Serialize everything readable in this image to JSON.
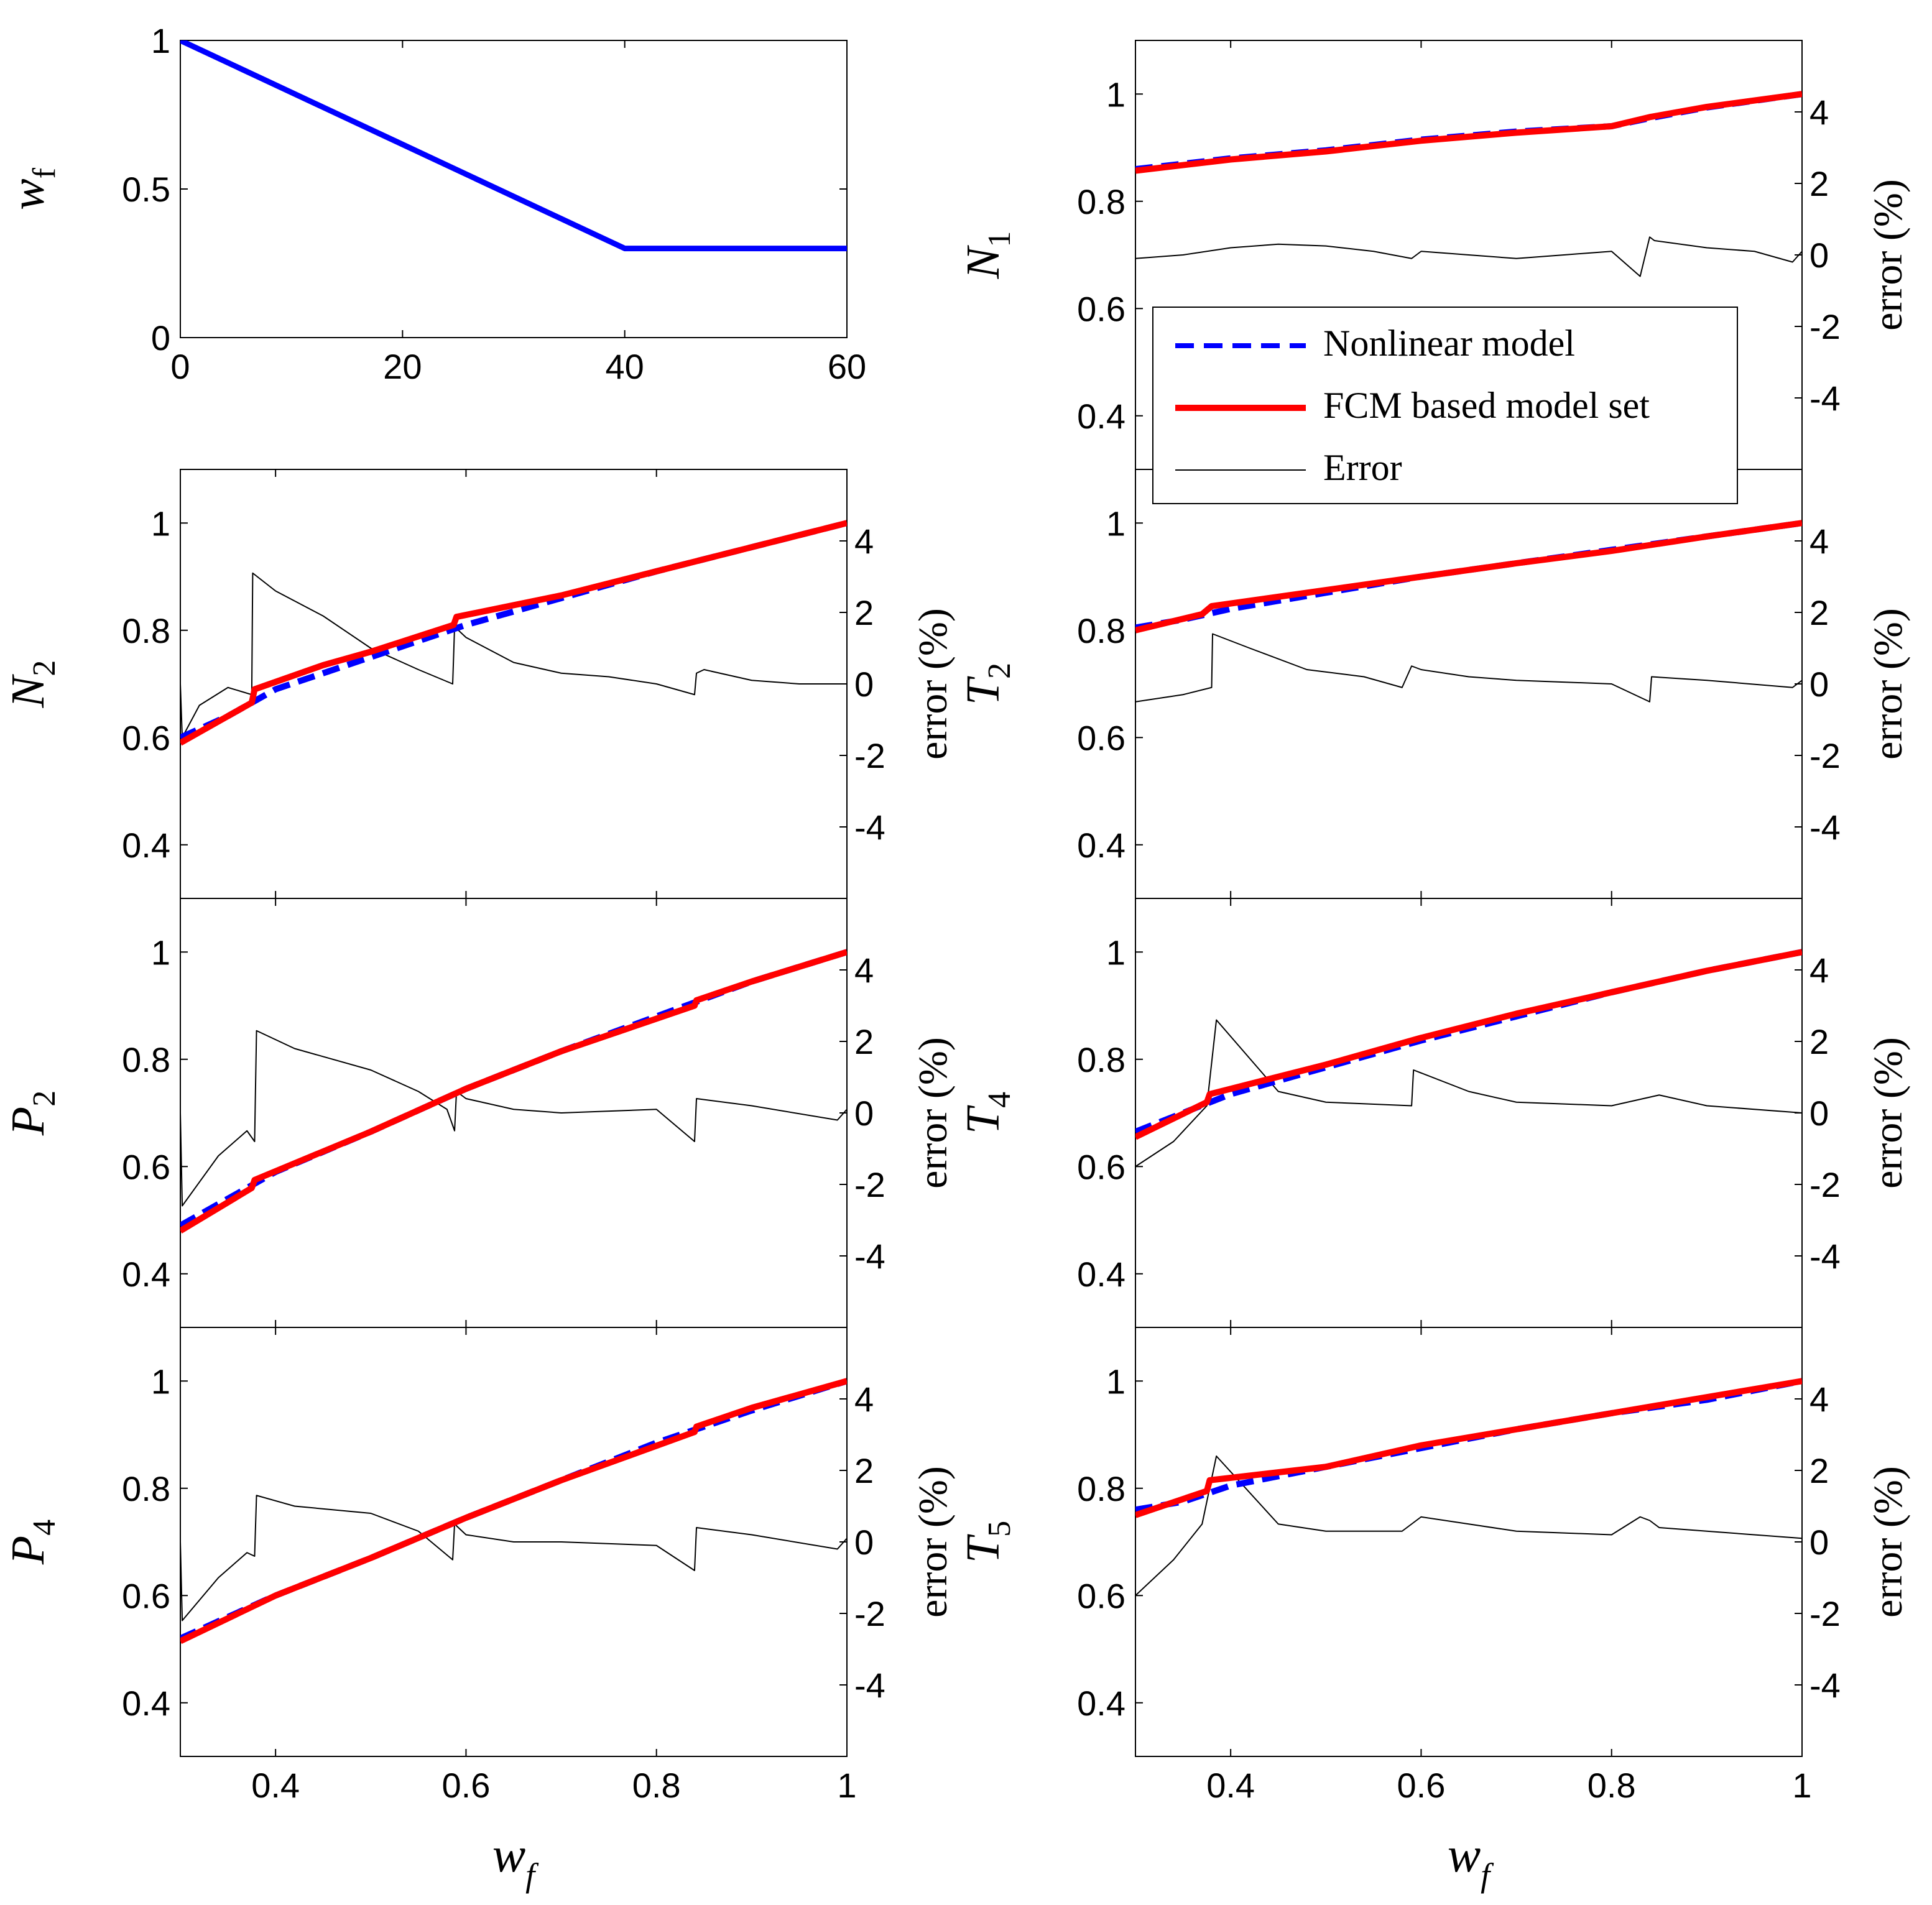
{
  "figure": {
    "legend": {
      "entries": [
        {
          "label": "Nonlinear model",
          "color": "#0000ff",
          "style": "dashed"
        },
        {
          "label": "FCM based model set",
          "color": "#ff0000",
          "style": "solid"
        },
        {
          "label": "Error",
          "color": "#000000",
          "style": "thin"
        }
      ],
      "placement": "inside N1 panel, lower center"
    }
  },
  "chart_data": [
    {
      "id": "wf-input",
      "type": "line",
      "ylabel_main": "w",
      "ylabel_sub": "f",
      "xlim": [
        0,
        60
      ],
      "ylim": [
        0,
        1
      ],
      "xticks": [
        "0",
        "20",
        "40",
        "60"
      ],
      "xtick_values": [
        0,
        20,
        40,
        60
      ],
      "yticks": [
        "0",
        "0.5",
        "1"
      ],
      "ytick_values": [
        0,
        0.5,
        1
      ],
      "series": [
        {
          "color": "#0000ff",
          "x": [
            0,
            40,
            60
          ],
          "y": [
            1,
            0.3,
            0.3
          ]
        }
      ]
    },
    {
      "id": "N1",
      "type": "line",
      "ylabel_main": "N",
      "ylabel_sub": "1",
      "y2label": "error (%)",
      "xlim": [
        0.3,
        1
      ],
      "ylim": [
        0.3,
        1.1
      ],
      "y2lim": [
        -6,
        6
      ],
      "yticks": [
        "0.4",
        "0.6",
        "0.8",
        "1"
      ],
      "ytick_values": [
        0.4,
        0.6,
        0.8,
        1
      ],
      "y2ticks": [
        "-4",
        "-2",
        "0",
        "2",
        "4"
      ],
      "y2tick_values": [
        -4,
        -2,
        0,
        2,
        4
      ],
      "series": [
        {
          "name": "Nonlinear model",
          "color": "#0000ff",
          "x": [
            0.3,
            0.4,
            0.5,
            0.6,
            0.7,
            0.8,
            0.84,
            0.9,
            1.0
          ],
          "y": [
            0.86,
            0.88,
            0.895,
            0.915,
            0.93,
            0.94,
            0.955,
            0.975,
            1.0
          ]
        },
        {
          "name": "FCM based model set",
          "color": "#ff0000",
          "x": [
            0.3,
            0.4,
            0.5,
            0.6,
            0.7,
            0.8,
            0.84,
            0.9,
            1.0
          ],
          "y": [
            0.857,
            0.878,
            0.893,
            0.913,
            0.928,
            0.94,
            0.957,
            0.976,
            1.0
          ]
        },
        {
          "name": "Error",
          "color": "#000000",
          "axis": "right",
          "x": [
            0.3,
            0.35,
            0.4,
            0.45,
            0.5,
            0.55,
            0.59,
            0.6,
            0.65,
            0.7,
            0.75,
            0.8,
            0.83,
            0.84,
            0.845,
            0.9,
            0.95,
            0.99,
            1.0
          ],
          "y": [
            -0.1,
            0.0,
            0.2,
            0.3,
            0.25,
            0.1,
            -0.1,
            0.1,
            0.0,
            -0.1,
            0.0,
            0.1,
            -0.6,
            0.5,
            0.4,
            0.2,
            0.1,
            -0.2,
            0.1
          ]
        }
      ]
    },
    {
      "id": "N2",
      "type": "line",
      "ylabel_main": "N",
      "ylabel_sub": "2",
      "y2label": "error (%)",
      "xlim": [
        0.3,
        1
      ],
      "ylim": [
        0.3,
        1.1
      ],
      "y2lim": [
        -6,
        6
      ],
      "yticks": [
        "0.4",
        "0.6",
        "0.8",
        "1"
      ],
      "ytick_values": [
        0.4,
        0.6,
        0.8,
        1
      ],
      "y2ticks": [
        "-4",
        "-2",
        "0",
        "2",
        "4"
      ],
      "y2tick_values": [
        -4,
        -2,
        0,
        2,
        4
      ],
      "series": [
        {
          "name": "Nonlinear model",
          "color": "#0000ff",
          "x": [
            0.3,
            0.35,
            0.4,
            0.45,
            0.5,
            0.55,
            0.6,
            0.7,
            0.8,
            0.9,
            1.0
          ],
          "y": [
            0.6,
            0.64,
            0.69,
            0.72,
            0.75,
            0.78,
            0.81,
            0.86,
            0.91,
            0.955,
            1.0
          ]
        },
        {
          "name": "FCM based model set",
          "color": "#ff0000",
          "x": [
            0.3,
            0.375,
            0.378,
            0.45,
            0.5,
            0.587,
            0.59,
            0.7,
            0.8,
            0.9,
            1.0
          ],
          "y": [
            0.59,
            0.665,
            0.69,
            0.735,
            0.76,
            0.81,
            0.825,
            0.865,
            0.91,
            0.955,
            1.0
          ]
        },
        {
          "name": "Error",
          "color": "#000000",
          "axis": "right",
          "x": [
            0.3,
            0.302,
            0.32,
            0.35,
            0.375,
            0.376,
            0.4,
            0.45,
            0.5,
            0.55,
            0.586,
            0.588,
            0.6,
            0.65,
            0.7,
            0.75,
            0.8,
            0.84,
            0.842,
            0.85,
            0.9,
            0.95,
            1.0
          ],
          "y": [
            0.0,
            -1.5,
            -0.6,
            -0.1,
            -0.3,
            3.1,
            2.6,
            1.9,
            1.0,
            0.4,
            0.0,
            1.6,
            1.3,
            0.6,
            0.3,
            0.2,
            0.0,
            -0.3,
            0.3,
            0.4,
            0.1,
            0.0,
            0.0
          ]
        }
      ]
    },
    {
      "id": "T2",
      "type": "line",
      "ylabel_main": "T",
      "ylabel_sub": "2",
      "y2label": "error (%)",
      "xlim": [
        0.3,
        1
      ],
      "ylim": [
        0.3,
        1.1
      ],
      "y2lim": [
        -6,
        6
      ],
      "yticks": [
        "0.4",
        "0.6",
        "0.8",
        "1"
      ],
      "ytick_values": [
        0.4,
        0.6,
        0.8,
        1
      ],
      "y2ticks": [
        "-4",
        "-2",
        "0",
        "2",
        "4"
      ],
      "y2tick_values": [
        -4,
        -2,
        0,
        2,
        4
      ],
      "series": [
        {
          "name": "Nonlinear model",
          "color": "#0000ff",
          "x": [
            0.3,
            0.35,
            0.4,
            0.5,
            0.6,
            0.7,
            0.8,
            0.9,
            1.0
          ],
          "y": [
            0.805,
            0.82,
            0.84,
            0.87,
            0.9,
            0.925,
            0.95,
            0.975,
            1.0
          ]
        },
        {
          "name": "FCM based model set",
          "color": "#ff0000",
          "x": [
            0.3,
            0.37,
            0.38,
            0.5,
            0.6,
            0.7,
            0.8,
            0.9,
            1.0
          ],
          "y": [
            0.8,
            0.83,
            0.845,
            0.875,
            0.9,
            0.925,
            0.948,
            0.975,
            1.0
          ]
        },
        {
          "name": "Error",
          "color": "#000000",
          "axis": "right",
          "x": [
            0.3,
            0.35,
            0.38,
            0.381,
            0.42,
            0.48,
            0.54,
            0.58,
            0.59,
            0.6,
            0.65,
            0.7,
            0.8,
            0.84,
            0.842,
            0.9,
            0.99,
            1.0
          ],
          "y": [
            -0.5,
            -0.3,
            -0.1,
            1.4,
            1.0,
            0.4,
            0.2,
            -0.1,
            0.5,
            0.4,
            0.2,
            0.1,
            0.0,
            -0.5,
            0.2,
            0.1,
            -0.1,
            0.1
          ]
        }
      ]
    },
    {
      "id": "P2",
      "type": "line",
      "ylabel_main": "P",
      "ylabel_sub": "2",
      "y2label": "error (%)",
      "xlim": [
        0.3,
        1
      ],
      "ylim": [
        0.3,
        1.1
      ],
      "y2lim": [
        -6,
        6
      ],
      "yticks": [
        "0.4",
        "0.6",
        "0.8",
        "1"
      ],
      "ytick_values": [
        0.4,
        0.6,
        0.8,
        1
      ],
      "y2ticks": [
        "-4",
        "-2",
        "0",
        "2",
        "4"
      ],
      "y2tick_values": [
        -4,
        -2,
        0,
        2,
        4
      ],
      "series": [
        {
          "name": "Nonlinear model",
          "color": "#0000ff",
          "x": [
            0.3,
            0.4,
            0.5,
            0.6,
            0.7,
            0.8,
            0.9,
            1.0
          ],
          "y": [
            0.49,
            0.59,
            0.665,
            0.745,
            0.815,
            0.88,
            0.945,
            1.0
          ]
        },
        {
          "name": "FCM based model set",
          "color": "#ff0000",
          "x": [
            0.3,
            0.375,
            0.378,
            0.5,
            0.6,
            0.7,
            0.84,
            0.842,
            0.9,
            1.0
          ],
          "y": [
            0.48,
            0.56,
            0.575,
            0.665,
            0.745,
            0.815,
            0.9,
            0.91,
            0.945,
            1.0
          ]
        },
        {
          "name": "Error",
          "color": "#000000",
          "axis": "right",
          "x": [
            0.3,
            0.302,
            0.34,
            0.37,
            0.378,
            0.38,
            0.42,
            0.5,
            0.55,
            0.58,
            0.588,
            0.59,
            0.6,
            0.65,
            0.7,
            0.8,
            0.84,
            0.842,
            0.9,
            0.99,
            1.0
          ],
          "y": [
            0.0,
            -2.6,
            -1.2,
            -0.5,
            -0.8,
            2.3,
            1.8,
            1.2,
            0.6,
            0.1,
            -0.5,
            0.6,
            0.4,
            0.1,
            0.0,
            0.1,
            -0.8,
            0.4,
            0.2,
            -0.2,
            0.1
          ]
        }
      ]
    },
    {
      "id": "T4",
      "type": "line",
      "ylabel_main": "T",
      "ylabel_sub": "4",
      "y2label": "error (%)",
      "xlim": [
        0.3,
        1
      ],
      "ylim": [
        0.3,
        1.1
      ],
      "y2lim": [
        -6,
        6
      ],
      "yticks": [
        "0.4",
        "0.6",
        "0.8",
        "1"
      ],
      "ytick_values": [
        0.4,
        0.6,
        0.8,
        1
      ],
      "y2ticks": [
        "-4",
        "-2",
        "0",
        "2",
        "4"
      ],
      "y2tick_values": [
        -4,
        -2,
        0,
        2,
        4
      ],
      "series": [
        {
          "name": "Nonlinear model",
          "color": "#0000ff",
          "x": [
            0.3,
            0.4,
            0.5,
            0.6,
            0.7,
            0.8,
            0.9,
            1.0
          ],
          "y": [
            0.665,
            0.735,
            0.785,
            0.835,
            0.88,
            0.925,
            0.965,
            1.0
          ]
        },
        {
          "name": "FCM based model set",
          "color": "#ff0000",
          "x": [
            0.3,
            0.375,
            0.378,
            0.5,
            0.6,
            0.7,
            0.8,
            0.9,
            1.0
          ],
          "y": [
            0.655,
            0.72,
            0.735,
            0.79,
            0.84,
            0.885,
            0.925,
            0.965,
            1.0
          ]
        },
        {
          "name": "Error",
          "color": "#000000",
          "axis": "right",
          "x": [
            0.3,
            0.34,
            0.375,
            0.385,
            0.45,
            0.5,
            0.59,
            0.592,
            0.65,
            0.7,
            0.8,
            0.85,
            0.9,
            1.0
          ],
          "y": [
            -1.5,
            -0.8,
            0.2,
            2.6,
            0.6,
            0.3,
            0.2,
            1.2,
            0.6,
            0.3,
            0.2,
            0.5,
            0.2,
            0.0
          ]
        }
      ]
    },
    {
      "id": "P4",
      "type": "line",
      "ylabel_main": "P",
      "ylabel_sub": "4",
      "y2label": "error (%)",
      "xlim": [
        0.3,
        1
      ],
      "ylim": [
        0.3,
        1.1
      ],
      "y2lim": [
        -6,
        6
      ],
      "yticks": [
        "0.4",
        "0.6",
        "0.8",
        "1"
      ],
      "ytick_values": [
        0.4,
        0.6,
        0.8,
        1
      ],
      "y2ticks": [
        "-4",
        "-2",
        "0",
        "2",
        "4"
      ],
      "y2tick_values": [
        -4,
        -2,
        0,
        2,
        4
      ],
      "series": [
        {
          "name": "Nonlinear model",
          "color": "#0000ff",
          "x": [
            0.3,
            0.4,
            0.5,
            0.6,
            0.7,
            0.8,
            0.9,
            1.0
          ],
          "y": [
            0.52,
            0.6,
            0.67,
            0.745,
            0.815,
            0.885,
            0.945,
            1.0
          ]
        },
        {
          "name": "FCM based model set",
          "color": "#ff0000",
          "x": [
            0.3,
            0.4,
            0.5,
            0.6,
            0.7,
            0.84,
            0.842,
            0.9,
            1.0
          ],
          "y": [
            0.515,
            0.6,
            0.67,
            0.745,
            0.815,
            0.905,
            0.915,
            0.95,
            1.0
          ]
        },
        {
          "name": "Error",
          "color": "#000000",
          "axis": "right",
          "x": [
            0.3,
            0.302,
            0.34,
            0.37,
            0.378,
            0.38,
            0.42,
            0.5,
            0.55,
            0.586,
            0.588,
            0.6,
            0.65,
            0.7,
            0.8,
            0.84,
            0.842,
            0.9,
            0.99,
            1.0
          ],
          "y": [
            0.0,
            -2.2,
            -1.0,
            -0.3,
            -0.4,
            1.3,
            1.0,
            0.8,
            0.3,
            -0.5,
            0.5,
            0.2,
            0.0,
            0.0,
            -0.1,
            -0.8,
            0.4,
            0.2,
            -0.2,
            0.1
          ]
        }
      ]
    },
    {
      "id": "T5",
      "type": "line",
      "ylabel_main": "T",
      "ylabel_sub": "5",
      "y2label": "error (%)",
      "xlim": [
        0.3,
        1
      ],
      "ylim": [
        0.3,
        1.1
      ],
      "y2lim": [
        -6,
        6
      ],
      "yticks": [
        "0.4",
        "0.6",
        "0.8",
        "1"
      ],
      "ytick_values": [
        0.4,
        0.6,
        0.8,
        1
      ],
      "y2ticks": [
        "-4",
        "-2",
        "0",
        "2",
        "4"
      ],
      "y2tick_values": [
        -4,
        -2,
        0,
        2,
        4
      ],
      "series": [
        {
          "name": "Nonlinear model",
          "color": "#0000ff",
          "x": [
            0.3,
            0.35,
            0.4,
            0.5,
            0.6,
            0.7,
            0.8,
            0.9,
            1.0
          ],
          "y": [
            0.76,
            0.775,
            0.805,
            0.84,
            0.875,
            0.91,
            0.94,
            0.965,
            1.0
          ]
        },
        {
          "name": "FCM based model set",
          "color": "#ff0000",
          "x": [
            0.3,
            0.375,
            0.378,
            0.5,
            0.6,
            0.7,
            0.8,
            0.9,
            1.0
          ],
          "y": [
            0.75,
            0.795,
            0.815,
            0.84,
            0.88,
            0.91,
            0.94,
            0.97,
            1.0
          ]
        },
        {
          "name": "Error",
          "color": "#000000",
          "axis": "right",
          "x": [
            0.3,
            0.34,
            0.37,
            0.385,
            0.45,
            0.5,
            0.58,
            0.6,
            0.65,
            0.7,
            0.8,
            0.83,
            0.84,
            0.85,
            0.9,
            1.0
          ],
          "y": [
            -1.5,
            -0.5,
            0.5,
            2.4,
            0.5,
            0.3,
            0.3,
            0.7,
            0.5,
            0.3,
            0.2,
            0.7,
            0.6,
            0.4,
            0.3,
            0.1
          ]
        }
      ]
    }
  ],
  "xaxis_shared": {
    "xticks": [
      "0.4",
      "0.6",
      "0.8",
      "1"
    ],
    "xtick_values": [
      0.4,
      0.6,
      0.8,
      1
    ],
    "label_main": "w",
    "label_sub": "f"
  }
}
